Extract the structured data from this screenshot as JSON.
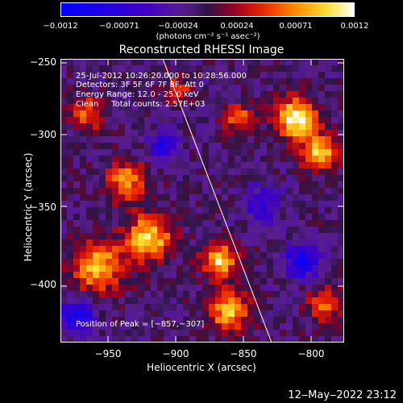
{
  "colorbar": {
    "ticks": [
      "−0.0012",
      "−0.00071",
      "−0.00024",
      "0.00024",
      "0.00071",
      "0.0012"
    ],
    "unit_label": "(photons cm⁻² s⁻¹ asec⁻²)"
  },
  "image": {
    "title": "Reconstructed RHESSI Image",
    "info_lines": [
      "25-Jul-2012 10:26:20.000 to 10:28:56.000",
      "Detectors: 3F 5F 6F 7F 8F, Att 0",
      "Energy Range: 12.0 - 25.0 keV",
      "Clean     Total counts: 2.57E+03"
    ],
    "peak_label": "Position of Peak = [−857,−307]",
    "x_axis": {
      "label": "Heliocentric X (arcsec)",
      "ticks": [
        "−950",
        "−900",
        "−850",
        "−800"
      ]
    },
    "y_axis": {
      "label": "Heliocentric Y (arcsec)",
      "ticks": [
        "−250",
        "−300",
        "−350",
        "−400"
      ]
    }
  },
  "footer": {
    "date": "12‒May‒2022 23:12"
  },
  "colors": {
    "background": "#000000",
    "text": "#ffffff"
  }
}
